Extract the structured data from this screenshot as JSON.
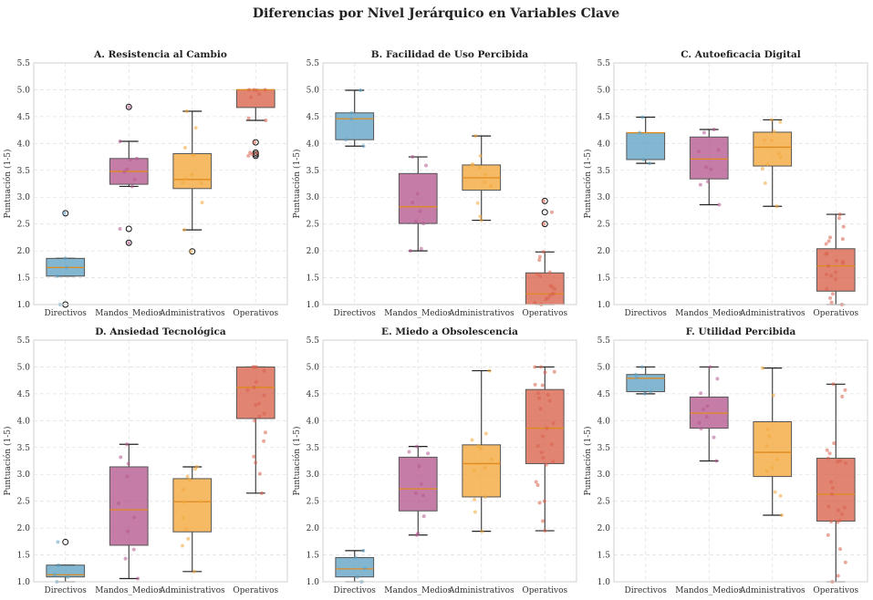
{
  "chart_data": {
    "type": "box",
    "title": "Diferencias por Nivel Jerárquico en Variables Clave",
    "categories": [
      "Directivos",
      "Mandos_Medios",
      "Administrativos",
      "Operativos"
    ],
    "colors": [
      "#5fa2c4",
      "#b5588f",
      "#f3a73a",
      "#d9614a"
    ],
    "median_color": "#e08a1e",
    "ylabel": "Puntuación (1-5)",
    "ylim": [
      1.0,
      5.5
    ],
    "yticks": [
      "1.0",
      "1.5",
      "2.0",
      "2.5",
      "3.0",
      "3.5",
      "4.0",
      "4.5",
      "5.0",
      "5.5"
    ],
    "grid": true,
    "panels": [
      {
        "title": "A. Resistencia al Cambio",
        "boxes": [
          {
            "whislo": 1.53,
            "q1": 1.53,
            "med": 1.69,
            "q3": 1.86,
            "whishi": 1.86,
            "fliers": [
              2.7,
              1.0
            ],
            "points": [
              1.86,
              1.69,
              1.53,
              1.0,
              2.7
            ]
          },
          {
            "whislo": 3.2,
            "q1": 3.24,
            "med": 3.48,
            "q3": 3.72,
            "whishi": 4.04,
            "fliers": [
              4.68,
              2.41,
              2.15
            ],
            "points": [
              4.68,
              4.04,
              3.72,
              3.7,
              3.52,
              3.47,
              3.33,
              3.2,
              2.41,
              2.15
            ]
          },
          {
            "whislo": 2.39,
            "q1": 3.16,
            "med": 3.33,
            "q3": 3.81,
            "whishi": 4.6,
            "fliers": [
              1.99
            ],
            "points": [
              4.6,
              4.29,
              3.92,
              3.78,
              3.42,
              3.34,
              3.27,
              3.26,
              2.9,
              2.39,
              1.99
            ]
          },
          {
            "whislo": 4.43,
            "q1": 4.67,
            "med": 5.0,
            "q3": 5.0,
            "whishi": 5.0,
            "fliers": [
              4.02,
              3.83,
              3.8,
              3.77
            ],
            "points": [
              5.0,
              5.0,
              5.0,
              4.99,
              4.92,
              4.86,
              4.47,
              4.43,
              4.02,
              3.83,
              3.82,
              3.8,
              3.77
            ]
          }
        ]
      },
      {
        "title": "B. Facilidad de Uso Percibida",
        "boxes": [
          {
            "whislo": 3.95,
            "q1": 4.07,
            "med": 4.46,
            "q3": 4.57,
            "whishi": 4.99,
            "fliers": [],
            "points": [
              4.99,
              4.57,
              4.46,
              4.07,
              3.95
            ]
          },
          {
            "whislo": 2.0,
            "q1": 2.51,
            "med": 2.82,
            "q3": 3.44,
            "whishi": 3.75,
            "fliers": [],
            "points": [
              3.75,
              3.59,
              3.06,
              2.9,
              2.74,
              2.55,
              2.51,
              2.04,
              2.0
            ]
          },
          {
            "whislo": 2.57,
            "q1": 3.13,
            "med": 3.36,
            "q3": 3.6,
            "whishi": 4.14,
            "fliers": [],
            "points": [
              4.14,
              3.77,
              3.61,
              3.6,
              3.55,
              3.42,
              3.28,
              3.21,
              2.89,
              2.64,
              2.57
            ]
          },
          {
            "whislo": 1.0,
            "q1": 1.0,
            "med": 1.2,
            "q3": 1.59,
            "whishi": 1.98,
            "fliers": [
              2.93,
              2.72,
              2.5
            ],
            "points": [
              2.93,
              2.72,
              2.5,
              1.98,
              1.89,
              1.83,
              1.6,
              1.57,
              1.53,
              1.35,
              1.33,
              1.29,
              1.2,
              1.2,
              1.17,
              1.12,
              1.1,
              1.03,
              1.0
            ]
          }
        ]
      },
      {
        "title": "C. Autoeficacia Digital",
        "boxes": [
          {
            "whislo": 3.63,
            "q1": 3.7,
            "med": 4.2,
            "q3": 4.2,
            "whishi": 4.49,
            "fliers": [],
            "points": [
              4.49,
              4.2,
              3.7,
              3.63
            ]
          },
          {
            "whislo": 2.86,
            "q1": 3.34,
            "med": 3.71,
            "q3": 4.12,
            "whishi": 4.26,
            "fliers": [],
            "points": [
              4.26,
              4.2,
              3.88,
              3.85,
              3.56,
              3.52,
              3.29,
              3.23,
              2.86
            ]
          },
          {
            "whislo": 2.83,
            "q1": 3.58,
            "med": 3.93,
            "q3": 4.21,
            "whishi": 4.44,
            "fliers": [],
            "points": [
              4.44,
              4.4,
              4.22,
              4.06,
              4.06,
              3.81,
              3.74,
              3.61,
              3.53,
              3.26,
              2.83
            ]
          },
          {
            "whislo": 1.0,
            "q1": 1.25,
            "med": 1.72,
            "q3": 2.04,
            "whishi": 2.68,
            "fliers": [],
            "points": [
              2.68,
              2.61,
              2.45,
              2.25,
              2.22,
              2.18,
              2.13,
              1.95,
              1.94,
              1.82,
              1.8,
              1.77,
              1.72,
              1.6,
              1.56,
              1.54,
              1.47,
              1.29,
              1.2,
              1.12,
              1.04,
              1.0
            ]
          }
        ]
      },
      {
        "title": "D. Ansiedad Tecnológica",
        "boxes": [
          {
            "whislo": 1.0,
            "q1": 1.09,
            "med": 1.13,
            "q3": 1.31,
            "whishi": 1.31,
            "fliers": [
              1.74
            ],
            "points": [
              1.74,
              1.31,
              1.13,
              1.09,
              1.0
            ]
          },
          {
            "whislo": 1.06,
            "q1": 1.68,
            "med": 2.34,
            "q3": 3.14,
            "whishi": 3.56,
            "fliers": [],
            "points": [
              3.56,
              3.32,
              3.2,
              2.96,
              2.46,
              2.2,
              1.94,
              1.6,
              1.43,
              1.06
            ]
          },
          {
            "whislo": 1.19,
            "q1": 1.93,
            "med": 2.49,
            "q3": 2.92,
            "whishi": 3.14,
            "fliers": [],
            "points": [
              3.14,
              3.1,
              2.96,
              2.9,
              2.72,
              2.49,
              2.48,
              2.19,
              1.98,
              1.8,
              1.67,
              1.19
            ]
          },
          {
            "whislo": 2.65,
            "q1": 4.04,
            "med": 4.62,
            "q3": 5.0,
            "whishi": 5.0,
            "fliers": [],
            "points": [
              5.0,
              5.0,
              5.0,
              4.93,
              4.72,
              4.62,
              4.57,
              4.47,
              4.32,
              4.29,
              4.13,
              4.08,
              4.0,
              3.78,
              3.62,
              3.33,
              3.22,
              3.01,
              2.65
            ]
          }
        ]
      },
      {
        "title": "E. Miedo a Obsolescencia",
        "boxes": [
          {
            "whislo": 1.0,
            "q1": 1.09,
            "med": 1.24,
            "q3": 1.45,
            "whishi": 1.58,
            "fliers": [],
            "points": [
              1.58,
              1.45,
              1.25,
              1.09,
              1.0
            ]
          },
          {
            "whislo": 1.87,
            "q1": 2.32,
            "med": 2.73,
            "q3": 3.32,
            "whishi": 3.52,
            "fliers": [],
            "points": [
              3.52,
              3.42,
              3.39,
              3.15,
              2.82,
              2.65,
              2.61,
              2.22,
              1.9,
              1.87
            ]
          },
          {
            "whislo": 1.94,
            "q1": 2.58,
            "med": 3.2,
            "q3": 3.55,
            "whishi": 4.93,
            "fliers": [],
            "points": [
              4.93,
              3.76,
              3.64,
              3.53,
              3.48,
              3.28,
              3.12,
              3.07,
              2.58,
              2.53,
              2.3,
              1.94
            ]
          },
          {
            "whislo": 1.95,
            "q1": 3.2,
            "med": 3.86,
            "q3": 4.58,
            "whishi": 5.0,
            "fliers": [],
            "points": [
              5.0,
              5.0,
              4.91,
              4.9,
              4.67,
              4.66,
              4.51,
              4.48,
              4.42,
              4.37,
              4.22,
              3.95,
              3.86,
              3.71,
              3.56,
              3.53,
              3.41,
              3.31,
              3.23,
              3.18,
              2.86,
              2.8,
              2.5,
              2.47,
              2.13,
              1.95
            ]
          }
        ]
      },
      {
        "title": "F. Utilidad Percibida",
        "boxes": [
          {
            "whislo": 4.5,
            "q1": 4.54,
            "med": 4.79,
            "q3": 4.86,
            "whishi": 5.0,
            "fliers": [],
            "points": [
              5.0,
              4.86,
              4.8,
              4.54,
              4.5
            ]
          },
          {
            "whislo": 3.25,
            "q1": 3.86,
            "med": 4.14,
            "q3": 4.44,
            "whishi": 5.0,
            "fliers": [],
            "points": [
              5.0,
              4.78,
              4.51,
              4.27,
              4.21,
              4.07,
              3.96,
              3.85,
              3.69,
              3.25
            ]
          },
          {
            "whislo": 2.24,
            "q1": 2.96,
            "med": 3.41,
            "q3": 3.98,
            "whishi": 4.98,
            "fliers": [],
            "points": [
              4.98,
              4.47,
              3.84,
              3.71,
              3.53,
              3.28,
              3.13,
              3.06,
              2.67,
              2.6,
              2.24
            ]
          },
          {
            "whislo": 1.0,
            "q1": 2.13,
            "med": 2.63,
            "q3": 3.3,
            "whishi": 4.68,
            "fliers": [],
            "points": [
              4.68,
              4.57,
              4.45,
              3.58,
              3.45,
              3.39,
              3.3,
              3.25,
              3.24,
              3.21,
              2.86,
              2.75,
              2.63,
              2.4,
              2.38,
              2.33,
              2.26,
              2.14,
              2.12,
              2.11,
              1.87,
              1.61,
              1.36,
              1.11,
              1.0
            ]
          }
        ]
      }
    ]
  }
}
